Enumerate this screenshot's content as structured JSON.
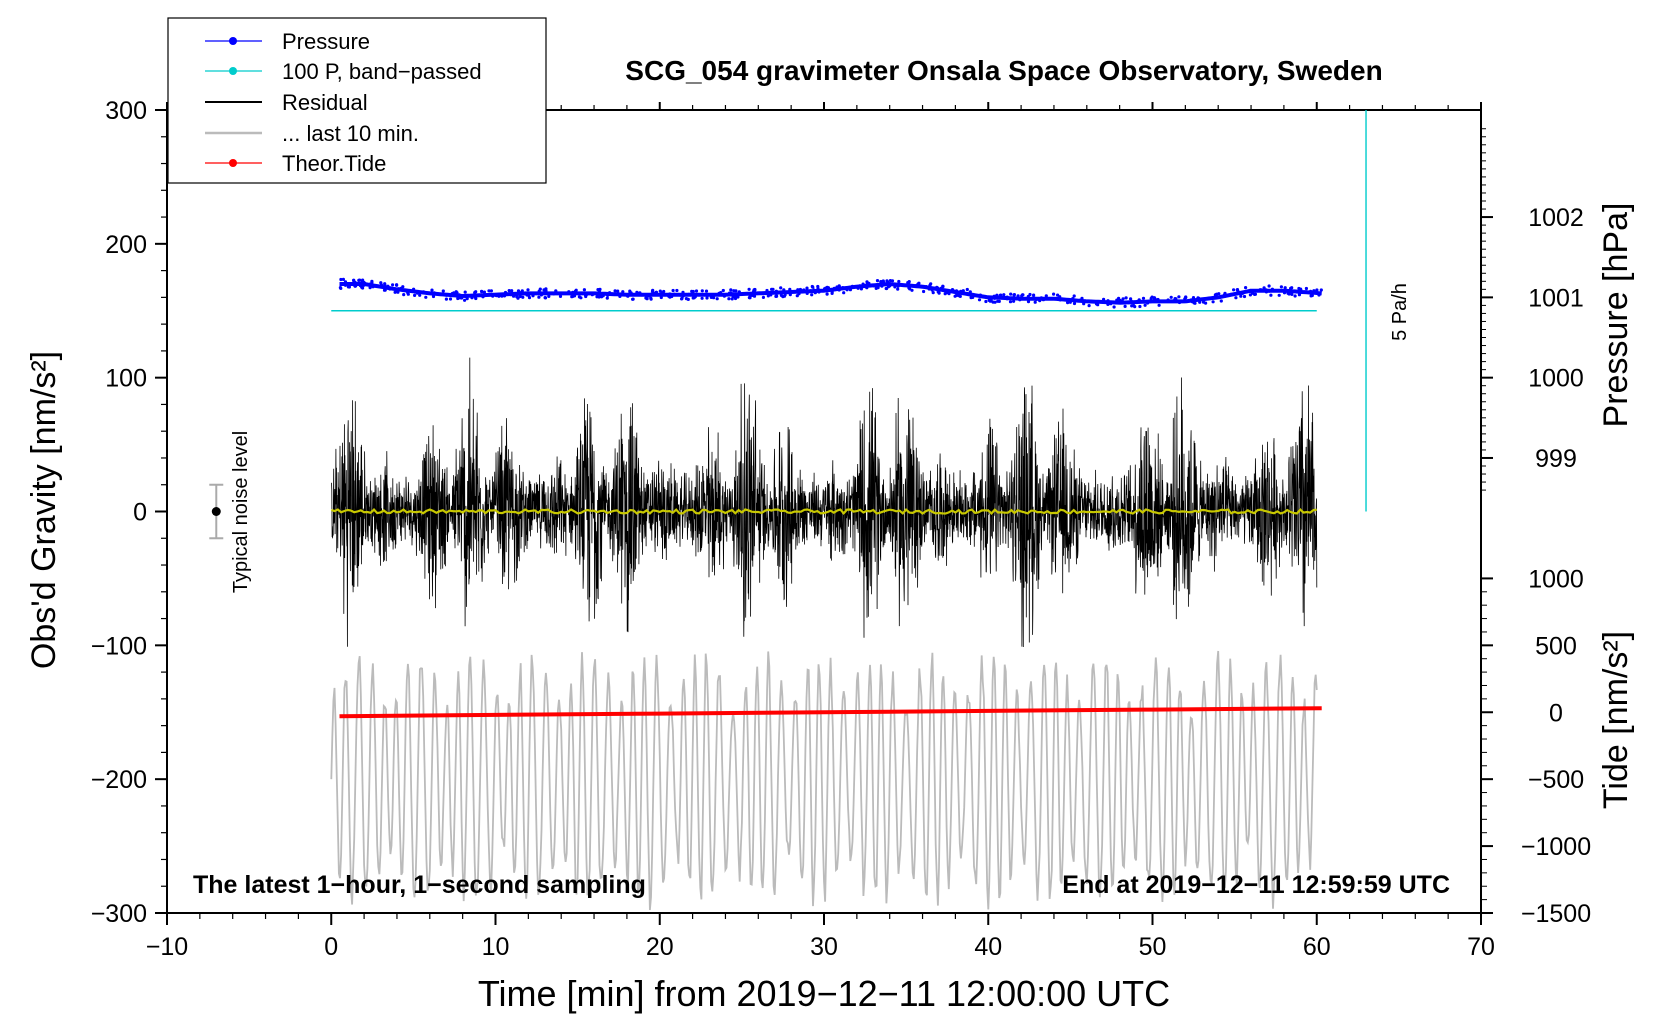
{
  "chart_data": {
    "type": "line",
    "title": "SCG_054 gravimeter Onsala Space Observatory, Sweden",
    "xlabel": "Time [min] from 2019−12−11 12:00:00 UTC",
    "ylabel_left": "Obs'd Gravity [nm/s²]",
    "ylabel_right_top": "Pressure [hPa]",
    "ylabel_right_bottom": "Tide [nm/s²]",
    "xlim": [
      -10,
      70
    ],
    "ylim": [
      -300,
      300
    ],
    "x_ticks": [
      "−10",
      "0",
      "10",
      "20",
      "30",
      "40",
      "50",
      "60",
      "70"
    ],
    "x_tick_values": [
      -10,
      0,
      10,
      20,
      30,
      40,
      50,
      60,
      70
    ],
    "y_ticks": [
      "300",
      "200",
      "100",
      "0",
      "−100",
      "−200",
      "−300"
    ],
    "y_tick_values": [
      300,
      200,
      100,
      0,
      -100,
      -200,
      -300
    ],
    "pressure_axis": {
      "ticks": [
        "1002",
        "1001",
        "1000",
        "999"
      ],
      "tick_values": [
        1002,
        1001,
        1000,
        999
      ],
      "gravity_at_1000": 100,
      "gravity_per_hpa": 60
    },
    "tide_axis": {
      "ticks": [
        "1000",
        "500",
        "0",
        "−500",
        "−1000",
        "−1500"
      ],
      "tick_values": [
        1000,
        500,
        0,
        -500,
        -1000,
        -1500
      ],
      "gravity_at_0": -150,
      "gravity_per_unit": 0.1
    },
    "legend": {
      "position": "top-left",
      "entries": [
        {
          "label": "Pressure",
          "color": "#0000ff",
          "marker": "dot"
        },
        {
          "label": "100 P, band−passed",
          "color": "#00cccc",
          "marker": "dot"
        },
        {
          "label": "Residual",
          "color": "#000000",
          "marker": "none"
        },
        {
          "label": "... last 10 min.",
          "color": "#bbbbbb",
          "marker": "none"
        },
        {
          "label": "Theor.Tide",
          "color": "#ff0000",
          "marker": "dot"
        }
      ]
    },
    "annotations": {
      "bottom_left": "The latest 1−hour, 1−second sampling",
      "bottom_right": "End at 2019−12−11 12:59:59 UTC",
      "noise_label": "Typical noise level",
      "rate_label": "5 Pa/h"
    },
    "noise_bar": {
      "x": -7,
      "center": 0,
      "half_range": 20
    },
    "rate_bar": {
      "x": 63,
      "from": 0,
      "to": 300
    },
    "series": [
      {
        "name": "Pressure",
        "color": "#0000ff",
        "x": [
          0.5,
          2,
          4,
          6,
          8,
          10,
          12,
          14,
          16,
          18,
          20,
          22,
          24,
          26,
          28,
          30,
          32,
          34,
          36,
          38,
          40,
          42,
          44,
          46,
          48,
          50,
          52,
          54,
          56,
          58,
          60.3
        ],
        "y": [
          170,
          170,
          166,
          163,
          161,
          162,
          163,
          163,
          163,
          162,
          162,
          162,
          162,
          163,
          164,
          165,
          168,
          170,
          168,
          164,
          160,
          159,
          159,
          157,
          156,
          157,
          157,
          160,
          165,
          165,
          163
        ]
      },
      {
        "name": "100 P, band−passed",
        "color": "#00cccc",
        "x": [
          0,
          60
        ],
        "y": [
          150,
          150
        ]
      },
      {
        "name": "Theor.Tide",
        "color": "#ff0000",
        "x": [
          0.5,
          10,
          20,
          30,
          40,
          50,
          60.3
        ],
        "y": [
          -153,
          -152,
          -151,
          -150,
          -149,
          -148,
          -147
        ]
      },
      {
        "name": "Residual",
        "color": "#000000",
        "x_range": [
          0,
          60
        ],
        "envelope_nm_s2": [
          -120,
          125
        ]
      },
      {
        "name": "... last 10 min.",
        "color": "#bbbbbb",
        "x_range": [
          0,
          60
        ],
        "envelope_nm_s2": [
          -300,
          -100
        ]
      },
      {
        "name": "Mean residual",
        "color": "#c8c800",
        "x": [
          0,
          60
        ],
        "y": [
          0,
          0
        ]
      }
    ]
  }
}
